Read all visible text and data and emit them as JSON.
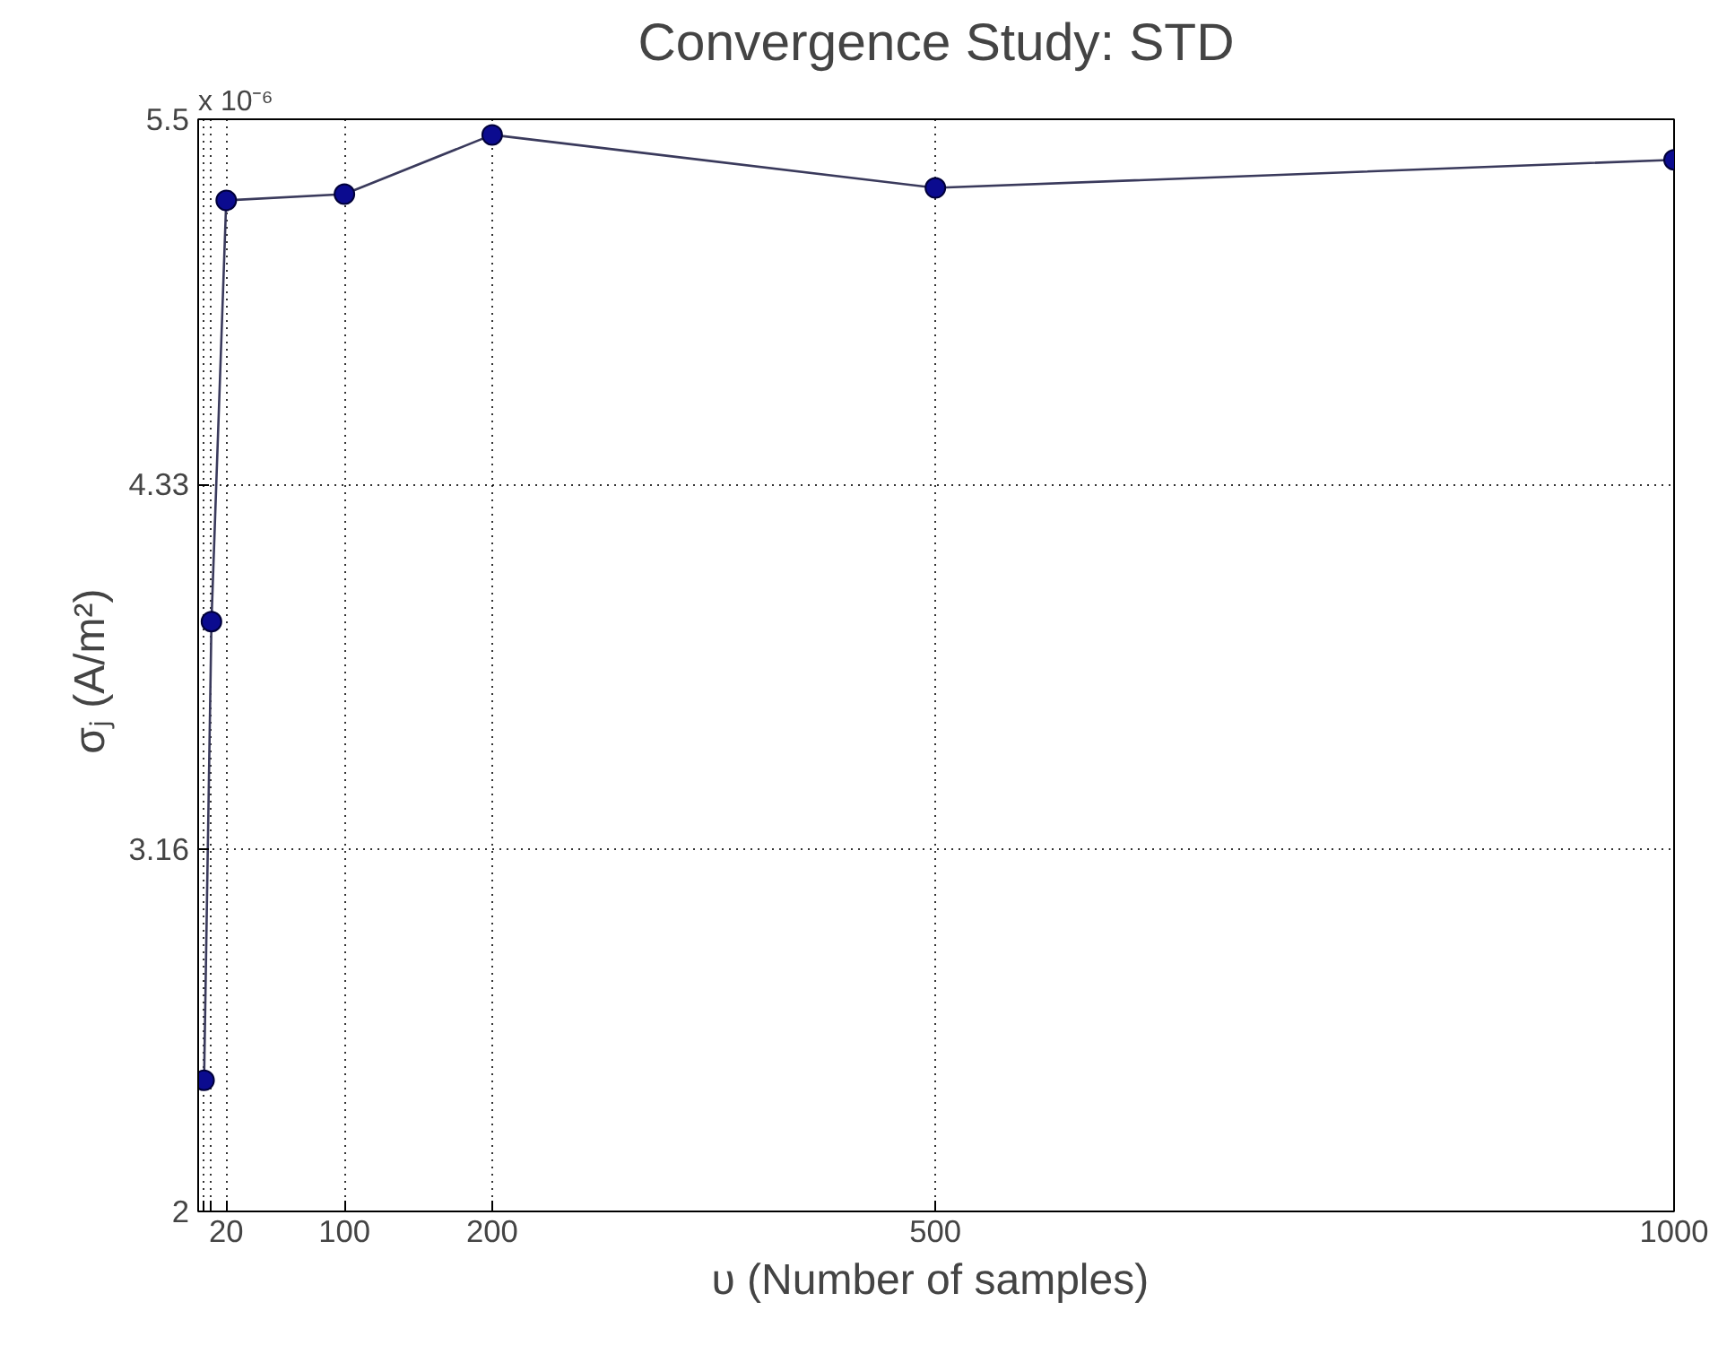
{
  "chart_data": {
    "type": "line",
    "title": "Convergence Study: STD",
    "xlabel": "υ  (Number of samples)",
    "ylabel": "σⱼ  (A/m²)",
    "annotations": [
      "x 10⁻⁶"
    ],
    "x": [
      5,
      10,
      20,
      100,
      200,
      500,
      1000
    ],
    "series": [
      {
        "color": "#0b0b8f",
        "values": [
          2.42,
          3.89,
          5.24,
          5.26,
          5.45,
          5.28,
          5.37
        ]
      }
    ],
    "xlim": [
      1,
      1000
    ],
    "xticks": [
      {
        "value": 5,
        "label": null
      },
      {
        "value": 10,
        "label": null
      },
      20,
      100,
      200,
      500,
      1000
    ],
    "ylim": [
      2,
      5.5
    ],
    "yticks": [
      2,
      3.16,
      4.33,
      5.5
    ],
    "grid": true,
    "marker": "circle",
    "line_style": "solid"
  }
}
